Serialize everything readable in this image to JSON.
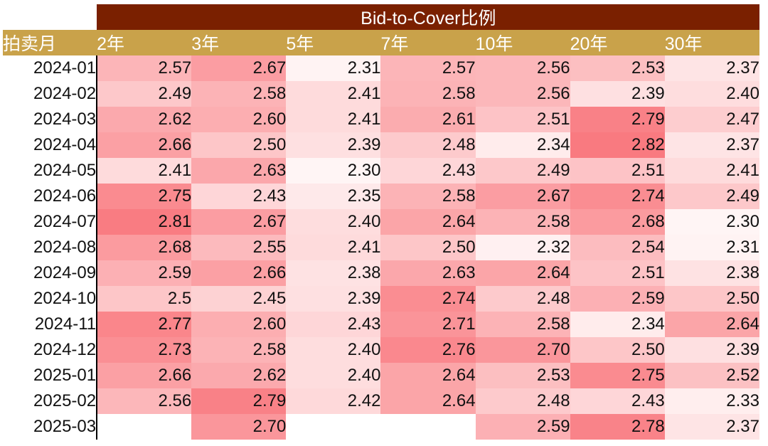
{
  "chart_data": {
    "type": "heatmap",
    "title": "Bid-to-Cover比例",
    "row_header": "拍卖月",
    "columns": [
      "2年",
      "3年",
      "5年",
      "7年",
      "10年",
      "20年",
      "30年"
    ],
    "rows": [
      {
        "label": "2024-01",
        "values": [
          "2.57",
          "2.67",
          "2.31",
          "2.57",
          "2.56",
          "2.53",
          "2.37"
        ]
      },
      {
        "label": "2024-02",
        "values": [
          "2.49",
          "2.58",
          "2.41",
          "2.58",
          "2.56",
          "2.39",
          "2.40"
        ]
      },
      {
        "label": "2024-03",
        "values": [
          "2.62",
          "2.60",
          "2.41",
          "2.61",
          "2.51",
          "2.79",
          "2.47"
        ]
      },
      {
        "label": "2024-04",
        "values": [
          "2.66",
          "2.50",
          "2.39",
          "2.48",
          "2.34",
          "2.82",
          "2.37"
        ]
      },
      {
        "label": "2024-05",
        "values": [
          "2.41",
          "2.63",
          "2.30",
          "2.43",
          "2.49",
          "2.51",
          "2.41"
        ]
      },
      {
        "label": "2024-06",
        "values": [
          "2.75",
          "2.43",
          "2.35",
          "2.58",
          "2.67",
          "2.74",
          "2.49"
        ]
      },
      {
        "label": "2024-07",
        "values": [
          "2.81",
          "2.67",
          "2.40",
          "2.64",
          "2.58",
          "2.68",
          "2.30"
        ]
      },
      {
        "label": "2024-08",
        "values": [
          "2.68",
          "2.55",
          "2.41",
          "2.50",
          "2.32",
          "2.54",
          "2.31"
        ]
      },
      {
        "label": "2024-09",
        "values": [
          "2.59",
          "2.66",
          "2.38",
          "2.63",
          "2.64",
          "2.51",
          "2.38"
        ]
      },
      {
        "label": "2024-10",
        "values": [
          "2.5",
          "2.45",
          "2.39",
          "2.74",
          "2.48",
          "2.59",
          "2.50"
        ]
      },
      {
        "label": "2024-11",
        "values": [
          "2.77",
          "2.60",
          "2.43",
          "2.71",
          "2.58",
          "2.34",
          "2.64"
        ]
      },
      {
        "label": "2024-12",
        "values": [
          "2.73",
          "2.58",
          "2.40",
          "2.76",
          "2.70",
          "2.50",
          "2.39"
        ]
      },
      {
        "label": "2025-01",
        "values": [
          "2.66",
          "2.62",
          "2.40",
          "2.64",
          "2.53",
          "2.75",
          "2.52"
        ]
      },
      {
        "label": "2025-02",
        "values": [
          "2.56",
          "2.79",
          "2.42",
          "2.64",
          "2.48",
          "2.43",
          "2.33"
        ]
      },
      {
        "label": "2025-03",
        "values": [
          null,
          "2.70",
          null,
          null,
          "2.59",
          "2.78",
          "2.37"
        ]
      }
    ],
    "color_scale": {
      "low": "#fff5f5",
      "high": "#f97a80",
      "min": 2.3,
      "max": 2.82
    }
  }
}
